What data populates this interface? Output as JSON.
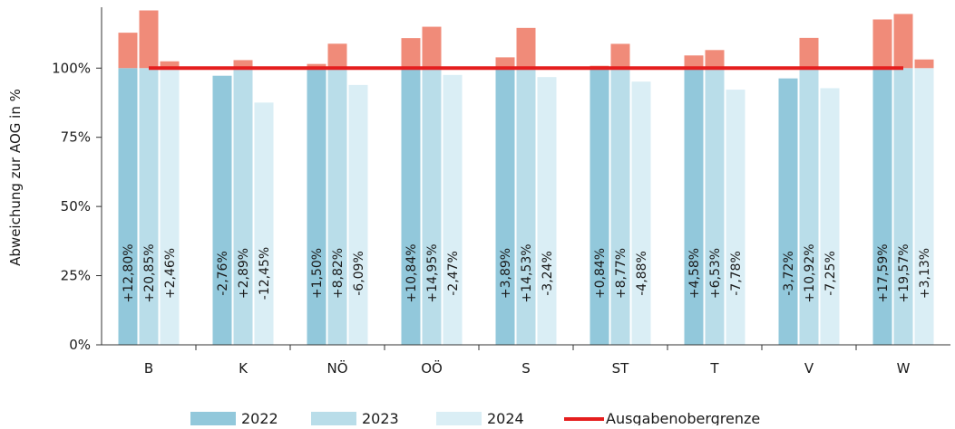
{
  "chart_data": {
    "type": "bar",
    "ylabel": "Abweichung zur AOG in %",
    "ylim": [
      0,
      122
    ],
    "yticks": [
      {
        "value": 0,
        "label": "0%"
      },
      {
        "value": 25,
        "label": "25%"
      },
      {
        "value": 50,
        "label": "50%"
      },
      {
        "value": 75,
        "label": "75%"
      },
      {
        "value": 100,
        "label": "100%"
      }
    ],
    "categories": [
      "B",
      "K",
      "NÖ",
      "OÖ",
      "S",
      "ST",
      "T",
      "V",
      "W"
    ],
    "series": [
      {
        "name": "2022",
        "color": "#92c8db",
        "values": [
          112.8,
          97.24,
          101.5,
          110.84,
          103.89,
          100.84,
          104.58,
          96.28,
          117.59
        ],
        "labels": [
          "+12,80%",
          "-2,76%",
          "+1,50%",
          "+10,84%",
          "+3,89%",
          "+0,84%",
          "+4,58%",
          "-3,72%",
          "+17,59%"
        ]
      },
      {
        "name": "2023",
        "color": "#b9dde9",
        "values": [
          120.85,
          102.89,
          108.82,
          114.95,
          114.53,
          108.77,
          106.53,
          110.92,
          119.57
        ],
        "labels": [
          "+20,85%",
          "+2,89%",
          "+8,82%",
          "+14,95%",
          "+14,53%",
          "+8,77%",
          "+6,53%",
          "+10,92%",
          "+19,57%"
        ]
      },
      {
        "name": "2024",
        "color": "#daeef5",
        "values": [
          102.46,
          87.55,
          93.91,
          97.53,
          96.76,
          95.12,
          92.22,
          92.75,
          103.13
        ],
        "labels": [
          "+2,46%",
          "-12,45%",
          "-6,09%",
          "-2,47%",
          "-3,24%",
          "-4,88%",
          "-7,78%",
          "-7,25%",
          "+3,13%"
        ]
      }
    ],
    "excess_color": "#f08b79",
    "reference_line": {
      "name": "Ausgabenobergrenze",
      "value": 100,
      "color": "#e51e1e"
    },
    "grid": false,
    "legend": "bottom"
  }
}
